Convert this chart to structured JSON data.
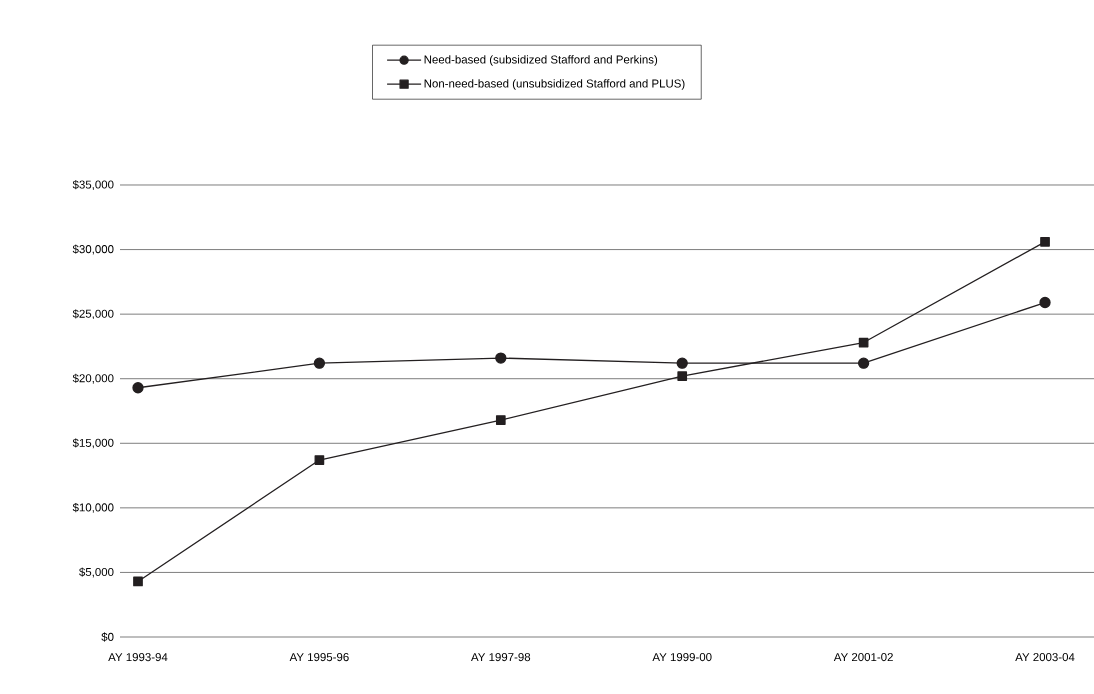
{
  "chart_data": {
    "type": "line",
    "categories": [
      "AY 1993-94",
      "AY 1995-96",
      "AY 1997-98",
      "AY 1999-00",
      "AY 2001-02",
      "AY 2003-04"
    ],
    "series": [
      {
        "name": "Need-based (subsidized Stafford and Perkins)",
        "color": "#231f20",
        "marker": "circle",
        "values": [
          19300,
          21200,
          21600,
          21200,
          21200,
          25900
        ]
      },
      {
        "name": "Non-need-based (unsubsidized Stafford and PLUS)",
        "color": "#231f20",
        "marker": "square",
        "values": [
          4300,
          13700,
          16800,
          20200,
          22800,
          30600
        ]
      }
    ],
    "ylim": [
      0,
      35000
    ],
    "yticks": [
      {
        "value": 0,
        "label": "$0"
      },
      {
        "value": 5000,
        "label": "$5,000"
      },
      {
        "value": 10000,
        "label": "$10,000"
      },
      {
        "value": 15000,
        "label": "$15,000"
      },
      {
        "value": 20000,
        "label": "$20,000"
      },
      {
        "value": 25000,
        "label": "$25,000"
      },
      {
        "value": 30000,
        "label": "$30,000"
      },
      {
        "value": 35000,
        "label": "$35,000"
      }
    ],
    "grid": "y",
    "legend": "top",
    "line_style": "solid"
  }
}
